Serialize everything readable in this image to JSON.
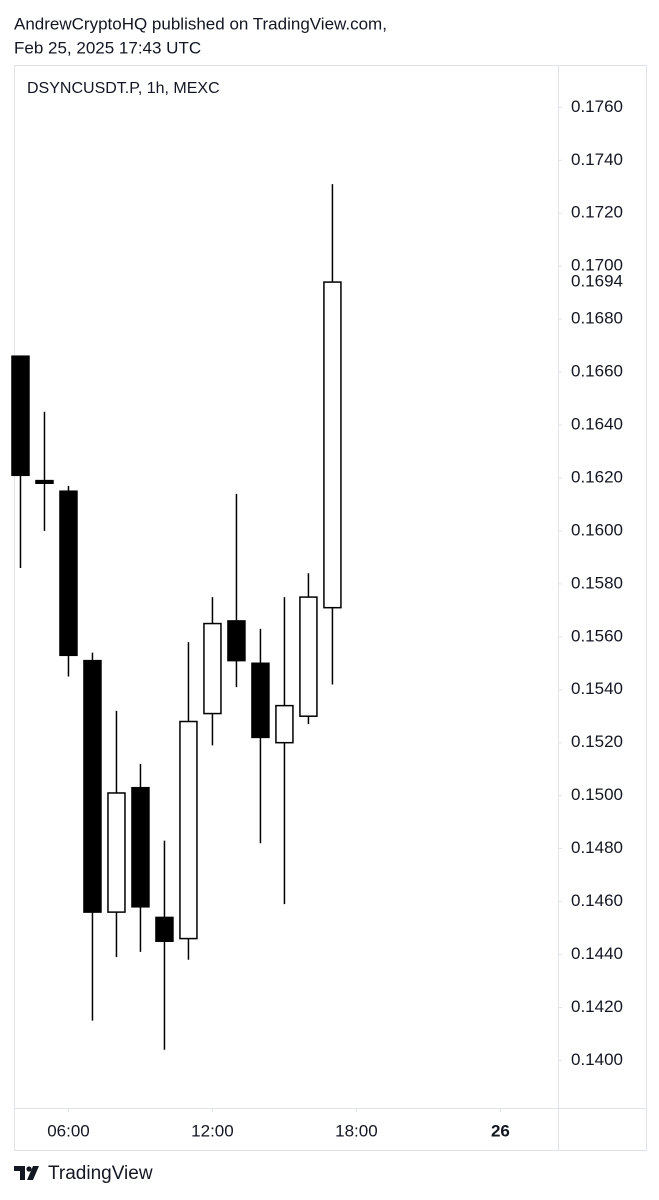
{
  "header": {
    "line1": "AndrewCryptoHQ published on TradingView.com,",
    "line2": "Feb 25, 2025 17:43 UTC",
    "brand": "TradingView"
  },
  "chart_data": {
    "type": "candlestick",
    "title": "DSYNCUSDT.P, 1h, MEXC",
    "x": [
      4,
      5,
      6,
      7,
      8,
      9,
      10,
      11,
      12,
      13,
      14,
      15,
      16,
      17
    ],
    "open": [
      0.1666,
      0.1619,
      0.1615,
      0.1551,
      0.1456,
      0.1503,
      0.1454,
      0.1446,
      0.1531,
      0.1566,
      0.155,
      0.152,
      0.153,
      0.1571
    ],
    "high": [
      0.1666,
      0.1645,
      0.1617,
      0.1554,
      0.1532,
      0.1512,
      0.1483,
      0.1558,
      0.1575,
      0.1614,
      0.1563,
      0.1575,
      0.1584,
      0.1731
    ],
    "low": [
      0.1586,
      0.16,
      0.1545,
      0.1415,
      0.1439,
      0.1441,
      0.1404,
      0.1438,
      0.1519,
      0.1541,
      0.1482,
      0.1459,
      0.1527,
      0.1542
    ],
    "close": [
      0.1621,
      0.1618,
      0.1553,
      0.1456,
      0.1501,
      0.1458,
      0.1445,
      0.1528,
      0.1565,
      0.1551,
      0.1522,
      0.1534,
      0.1575,
      0.1694
    ],
    "up_color": "#ffffff",
    "down_color": "#000000",
    "last_price": 0.1694,
    "xlim": [
      3.73,
      26.4
    ],
    "xticks": [
      {
        "value": 6,
        "label": "06:00"
      },
      {
        "value": 12,
        "label": "12:00"
      },
      {
        "value": 18,
        "label": "18:00"
      },
      {
        "value": 24,
        "label": "26"
      }
    ],
    "ylim": [
      0.1382,
      0.1776
    ],
    "yticks": [
      {
        "value": 0.14,
        "label": "0.1400"
      },
      {
        "value": 0.142,
        "label": "0.1420"
      },
      {
        "value": 0.144,
        "label": "0.1440"
      },
      {
        "value": 0.146,
        "label": "0.1460"
      },
      {
        "value": 0.148,
        "label": "0.1480"
      },
      {
        "value": 0.15,
        "label": "0.1500"
      },
      {
        "value": 0.152,
        "label": "0.1520"
      },
      {
        "value": 0.154,
        "label": "0.1540"
      },
      {
        "value": 0.156,
        "label": "0.1560"
      },
      {
        "value": 0.158,
        "label": "0.1580"
      },
      {
        "value": 0.16,
        "label": "0.1600"
      },
      {
        "value": 0.162,
        "label": "0.1620"
      },
      {
        "value": 0.164,
        "label": "0.1640"
      },
      {
        "value": 0.166,
        "label": "0.1660"
      },
      {
        "value": 0.168,
        "label": "0.1680"
      },
      {
        "value": 0.17,
        "label": "0.1700"
      },
      {
        "value": 0.172,
        "label": "0.1720"
      },
      {
        "value": 0.174,
        "label": "0.1740"
      },
      {
        "value": 0.176,
        "label": "0.1760"
      }
    ]
  }
}
